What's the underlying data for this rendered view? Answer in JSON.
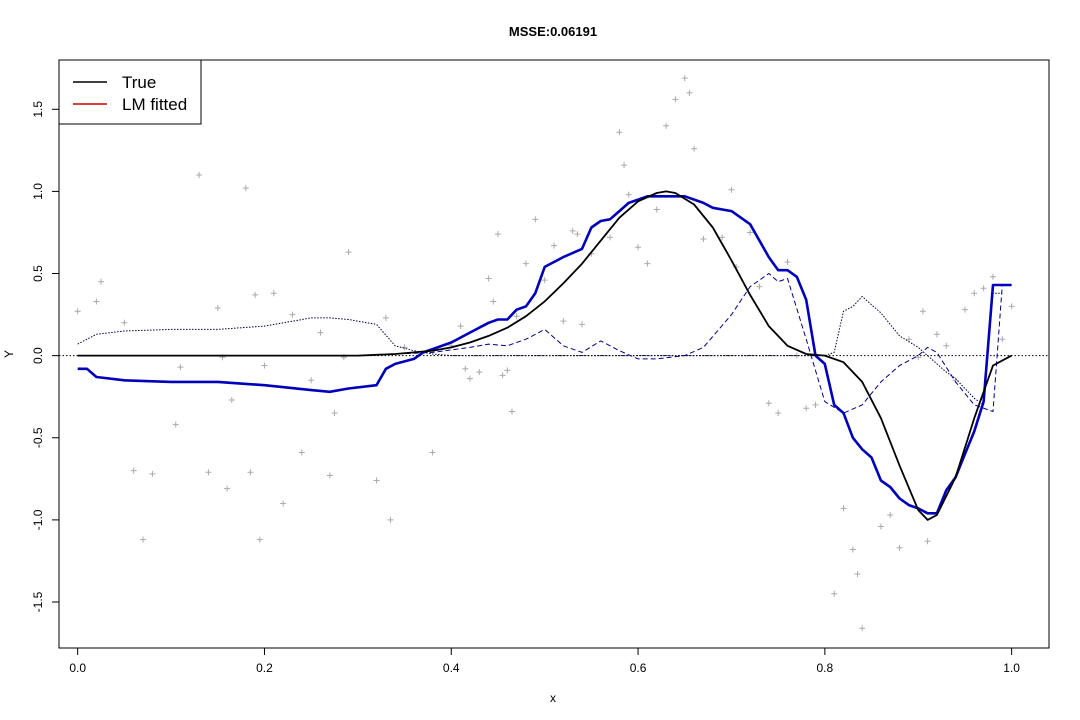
{
  "chart_data": {
    "type": "line",
    "title": "MSSE:0.06191",
    "xlabel": "x",
    "ylabel": "Y",
    "xlim": [
      -0.02,
      1.04
    ],
    "ylim": [
      -1.78,
      1.8
    ],
    "xticks": [
      0.0,
      0.2,
      0.4,
      0.6,
      0.8,
      1.0
    ],
    "xtick_labels": [
      "0.0",
      "0.2",
      "0.4",
      "0.6",
      "0.8",
      "1.0"
    ],
    "yticks": [
      -1.5,
      -1.0,
      -0.5,
      0.0,
      0.5,
      1.0,
      1.5
    ],
    "ytick_labels": [
      "-1.5",
      "-1.0",
      "-0.5",
      "0.0",
      "0.5",
      "1.0",
      "1.5"
    ],
    "grid": false,
    "legend_position": "top-left",
    "legend": [
      {
        "label": "True",
        "color": "#000000"
      },
      {
        "label": "LM fitted",
        "color": "#cc0000"
      }
    ],
    "hline": {
      "y": 0,
      "style": "dotted",
      "color": "#000000"
    },
    "series": [
      {
        "name": "True",
        "color": "#000000",
        "style": "solid",
        "x": [
          0.0,
          0.1,
          0.2,
          0.3,
          0.32,
          0.34,
          0.36,
          0.38,
          0.4,
          0.42,
          0.44,
          0.46,
          0.48,
          0.5,
          0.52,
          0.54,
          0.56,
          0.58,
          0.6,
          0.62,
          0.63,
          0.64,
          0.66,
          0.68,
          0.7,
          0.72,
          0.74,
          0.76,
          0.78,
          0.8,
          0.82,
          0.84,
          0.86,
          0.88,
          0.9,
          0.91,
          0.92,
          0.94,
          0.96,
          0.98,
          1.0
        ],
        "y": [
          0.0,
          0.0,
          0.0,
          0.0,
          0.005,
          0.01,
          0.02,
          0.03,
          0.05,
          0.08,
          0.12,
          0.17,
          0.24,
          0.33,
          0.44,
          0.56,
          0.7,
          0.84,
          0.94,
          0.99,
          1.0,
          0.99,
          0.92,
          0.78,
          0.58,
          0.37,
          0.18,
          0.06,
          0.01,
          0.0,
          -0.04,
          -0.16,
          -0.38,
          -0.67,
          -0.94,
          -1.0,
          -0.97,
          -0.74,
          -0.38,
          -0.06,
          0.0
        ]
      },
      {
        "name": "",
        "color": "#0000bb",
        "style": "thick",
        "x": [
          0.0,
          0.01,
          0.02,
          0.05,
          0.1,
          0.15,
          0.2,
          0.25,
          0.27,
          0.29,
          0.32,
          0.33,
          0.34,
          0.36,
          0.37,
          0.38,
          0.4,
          0.42,
          0.44,
          0.45,
          0.46,
          0.47,
          0.48,
          0.49,
          0.5,
          0.52,
          0.54,
          0.55,
          0.56,
          0.57,
          0.58,
          0.59,
          0.6,
          0.61,
          0.62,
          0.65,
          0.67,
          0.68,
          0.7,
          0.72,
          0.73,
          0.74,
          0.75,
          0.76,
          0.77,
          0.78,
          0.79,
          0.8,
          0.81,
          0.82,
          0.83,
          0.84,
          0.85,
          0.86,
          0.87,
          0.88,
          0.89,
          0.9,
          0.91,
          0.92,
          0.93,
          0.94,
          0.95,
          0.96,
          0.97,
          0.98,
          0.99,
          1.0
        ],
        "y": [
          -0.08,
          -0.08,
          -0.13,
          -0.15,
          -0.16,
          -0.16,
          -0.18,
          -0.21,
          -0.22,
          -0.2,
          -0.18,
          -0.08,
          -0.05,
          -0.02,
          0.02,
          0.04,
          0.08,
          0.14,
          0.2,
          0.22,
          0.22,
          0.28,
          0.3,
          0.38,
          0.54,
          0.6,
          0.65,
          0.78,
          0.82,
          0.83,
          0.88,
          0.93,
          0.95,
          0.97,
          0.97,
          0.97,
          0.93,
          0.9,
          0.88,
          0.8,
          0.7,
          0.6,
          0.52,
          0.52,
          0.48,
          0.34,
          0.0,
          -0.05,
          -0.3,
          -0.35,
          -0.5,
          -0.57,
          -0.62,
          -0.76,
          -0.8,
          -0.87,
          -0.91,
          -0.93,
          -0.96,
          -0.96,
          -0.82,
          -0.74,
          -0.6,
          -0.46,
          -0.28,
          0.43,
          0.43,
          0.43
        ]
      },
      {
        "name": "",
        "color": "#000044",
        "style": "dotted",
        "x": [
          0.0,
          0.02,
          0.05,
          0.1,
          0.15,
          0.2,
          0.25,
          0.27,
          0.29,
          0.32,
          0.34,
          0.36,
          0.38,
          0.4,
          0.42,
          0.5,
          0.6,
          0.7,
          0.75,
          0.78,
          0.8,
          0.81,
          0.82,
          0.83,
          0.84,
          0.86,
          0.88,
          0.9,
          0.91,
          0.92,
          0.93,
          0.94,
          0.95,
          0.96,
          0.97,
          0.98,
          0.99
        ],
        "y": [
          0.07,
          0.13,
          0.15,
          0.16,
          0.16,
          0.18,
          0.23,
          0.23,
          0.22,
          0.19,
          0.06,
          0.03,
          0.01,
          0.0,
          0.0,
          0.0,
          0.0,
          0.0,
          0.0,
          0.0,
          0.0,
          0.02,
          0.27,
          0.3,
          0.36,
          0.26,
          0.12,
          0.05,
          0.0,
          -0.05,
          -0.1,
          -0.14,
          -0.2,
          -0.26,
          -0.3,
          0.38,
          0.38
        ]
      },
      {
        "name": "",
        "color": "#000088",
        "style": "dashed",
        "x": [
          0.0,
          0.2,
          0.3,
          0.38,
          0.42,
          0.44,
          0.46,
          0.47,
          0.48,
          0.5,
          0.52,
          0.54,
          0.56,
          0.58,
          0.6,
          0.62,
          0.65,
          0.67,
          0.7,
          0.72,
          0.74,
          0.75,
          0.76,
          0.78,
          0.8,
          0.82,
          0.84,
          0.86,
          0.88,
          0.9,
          0.91,
          0.92,
          0.94,
          0.96,
          0.98,
          0.99
        ],
        "y": [
          0.0,
          0.0,
          0.0,
          0.02,
          0.05,
          0.07,
          0.06,
          0.08,
          0.1,
          0.16,
          0.06,
          0.02,
          0.09,
          0.03,
          -0.02,
          -0.02,
          0.0,
          0.05,
          0.25,
          0.42,
          0.5,
          0.45,
          0.47,
          0.1,
          -0.28,
          -0.35,
          -0.3,
          -0.16,
          -0.06,
          0.0,
          0.05,
          0.02,
          -0.16,
          -0.3,
          -0.34,
          0.43
        ]
      }
    ],
    "scatter": {
      "marker": "+",
      "color": "#aaaaaa",
      "x": [
        0.0,
        0.02,
        0.025,
        0.05,
        0.06,
        0.07,
        0.08,
        0.105,
        0.11,
        0.13,
        0.14,
        0.15,
        0.155,
        0.16,
        0.165,
        0.18,
        0.185,
        0.19,
        0.195,
        0.2,
        0.21,
        0.22,
        0.23,
        0.24,
        0.25,
        0.26,
        0.27,
        0.275,
        0.285,
        0.29,
        0.32,
        0.33,
        0.335,
        0.35,
        0.38,
        0.4,
        0.41,
        0.415,
        0.42,
        0.43,
        0.44,
        0.445,
        0.45,
        0.455,
        0.46,
        0.465,
        0.47,
        0.48,
        0.49,
        0.5,
        0.51,
        0.52,
        0.53,
        0.535,
        0.54,
        0.55,
        0.57,
        0.58,
        0.585,
        0.59,
        0.6,
        0.61,
        0.62,
        0.63,
        0.64,
        0.65,
        0.655,
        0.66,
        0.67,
        0.69,
        0.7,
        0.705,
        0.72,
        0.73,
        0.74,
        0.75,
        0.76,
        0.77,
        0.78,
        0.79,
        0.81,
        0.82,
        0.83,
        0.835,
        0.84,
        0.86,
        0.87,
        0.88,
        0.89,
        0.9,
        0.905,
        0.91,
        0.92,
        0.93,
        0.94,
        0.95,
        0.96,
        0.97,
        0.98,
        0.99,
        1.0
      ],
      "y": [
        0.27,
        0.33,
        0.45,
        0.2,
        -0.7,
        -1.12,
        -0.72,
        -0.42,
        -0.07,
        1.1,
        -0.71,
        0.29,
        -0.01,
        -0.81,
        -0.27,
        1.02,
        -0.71,
        0.37,
        -1.12,
        -0.06,
        0.38,
        -0.9,
        0.25,
        -0.59,
        -0.15,
        0.14,
        -0.73,
        -0.35,
        -0.01,
        0.63,
        -0.76,
        0.23,
        -1.0,
        0.05,
        -0.59,
        0.06,
        0.18,
        -0.08,
        -0.14,
        -0.1,
        0.47,
        0.33,
        0.74,
        -0.12,
        -0.09,
        -0.34,
        0.24,
        0.56,
        0.83,
        0.46,
        0.67,
        0.21,
        0.76,
        0.74,
        0.19,
        0.62,
        0.72,
        1.36,
        1.16,
        0.98,
        0.66,
        0.56,
        0.89,
        1.4,
        1.56,
        1.69,
        1.6,
        1.26,
        0.71,
        0.72,
        1.01,
        0.54,
        0.75,
        0.42,
        -0.29,
        -0.35,
        0.57,
        0.0,
        -0.32,
        -0.3,
        -1.45,
        -0.93,
        -1.18,
        -1.33,
        -1.66,
        -1.04,
        -0.97,
        -1.17,
        0.1,
        -0.01,
        0.27,
        -1.13,
        0.13,
        0.06,
        -0.15,
        0.28,
        0.38,
        0.41,
        0.48,
        0.1,
        0.3
      ]
    }
  }
}
